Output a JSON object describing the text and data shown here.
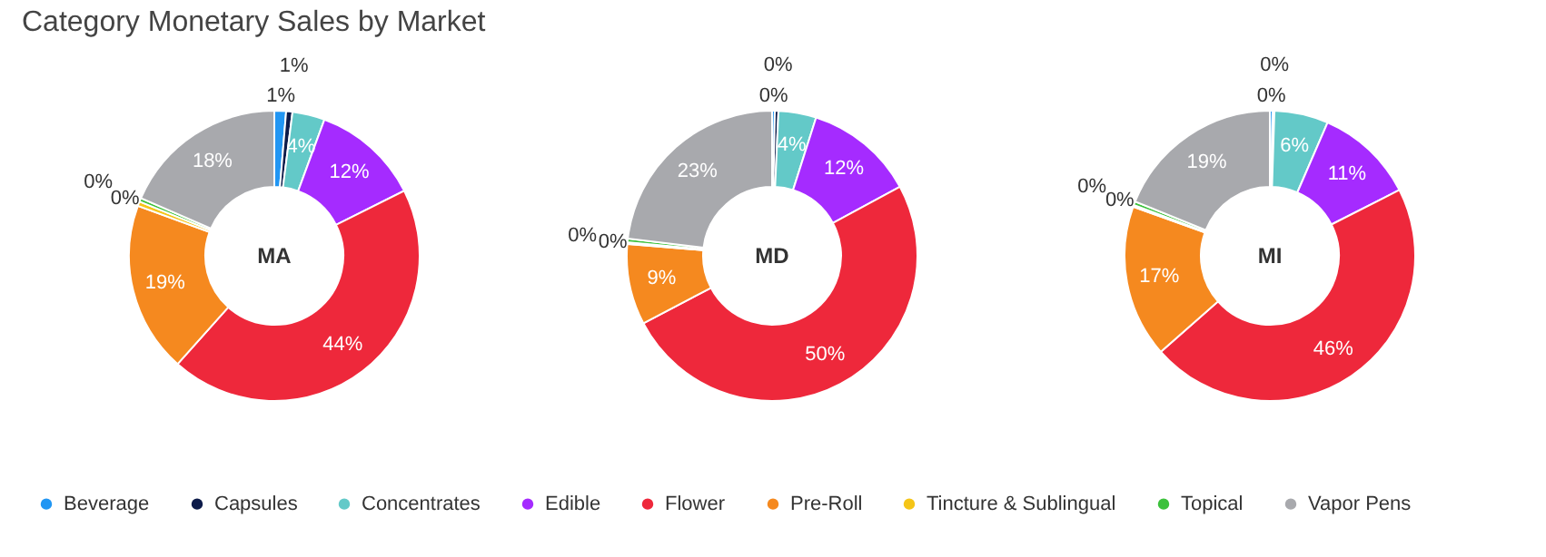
{
  "chart_data": {
    "type": "donut",
    "title": "Category Monetary Sales by Market",
    "legend": "bottom",
    "categories": [
      "Beverage",
      "Capsules",
      "Concentrates",
      "Edible",
      "Flower",
      "Pre-Roll",
      "Tincture & Sublingual",
      "Topical",
      "Vapor Pens"
    ],
    "colors": [
      "#2196f3",
      "#0d1b4a",
      "#63c9c8",
      "#a52bff",
      "#ee283b",
      "#f5891f",
      "#f5c518",
      "#3cc13c",
      "#a8a9ad"
    ],
    "series": [
      {
        "name": "MA",
        "values": [
          1.3,
          0.7,
          3.6,
          12,
          44,
          19,
          0.5,
          0.4,
          18.5
        ],
        "value_labels": [
          "1%",
          "1%",
          "4%",
          "12%",
          "44%",
          "19%",
          "0%",
          "0%",
          "18%"
        ]
      },
      {
        "name": "MD",
        "values": [
          0.3,
          0.4,
          4.2,
          12.2,
          50.2,
          9,
          0.2,
          0.4,
          23.1
        ],
        "value_labels": [
          "0%",
          "0%",
          "4%",
          "12%",
          "50%",
          "9%",
          "0%",
          "0%",
          "23%"
        ]
      },
      {
        "name": "MI",
        "values": [
          0.3,
          0.2,
          6,
          11,
          46,
          17,
          0.2,
          0.4,
          18.9
        ],
        "value_labels": [
          "0%",
          "0%",
          "6%",
          "11%",
          "46%",
          "17%",
          "0%",
          "0%",
          "19%"
        ]
      }
    ]
  }
}
